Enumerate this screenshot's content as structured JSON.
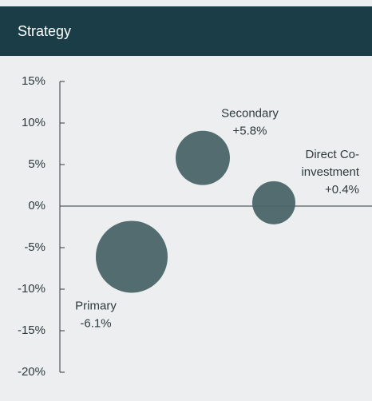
{
  "chart_data": {
    "type": "bubble",
    "title": "Strategy",
    "categories": [
      [
        "Primary"
      ],
      [
        "Secondary"
      ],
      [
        "Direct Co-",
        "investment"
      ]
    ],
    "values": [
      -6.1,
      5.8,
      0.4
    ],
    "value_labels": [
      "-6.1%",
      "+5.8%",
      "+0.4%"
    ],
    "sizes": [
      100,
      57,
      36
    ],
    "color": "#4a6468",
    "ylim": [
      -20,
      15
    ],
    "yticks": [
      {
        "value": -20,
        "label": "-20%"
      },
      {
        "value": -15,
        "label": "-15%"
      },
      {
        "value": -10,
        "label": "-10%"
      },
      {
        "value": -5,
        "label": "-5%"
      },
      {
        "value": 0,
        "label": "0%"
      },
      {
        "value": 5,
        "label": "5%"
      },
      {
        "value": 10,
        "label": "10%"
      },
      {
        "value": 15,
        "label": "15%"
      }
    ]
  }
}
